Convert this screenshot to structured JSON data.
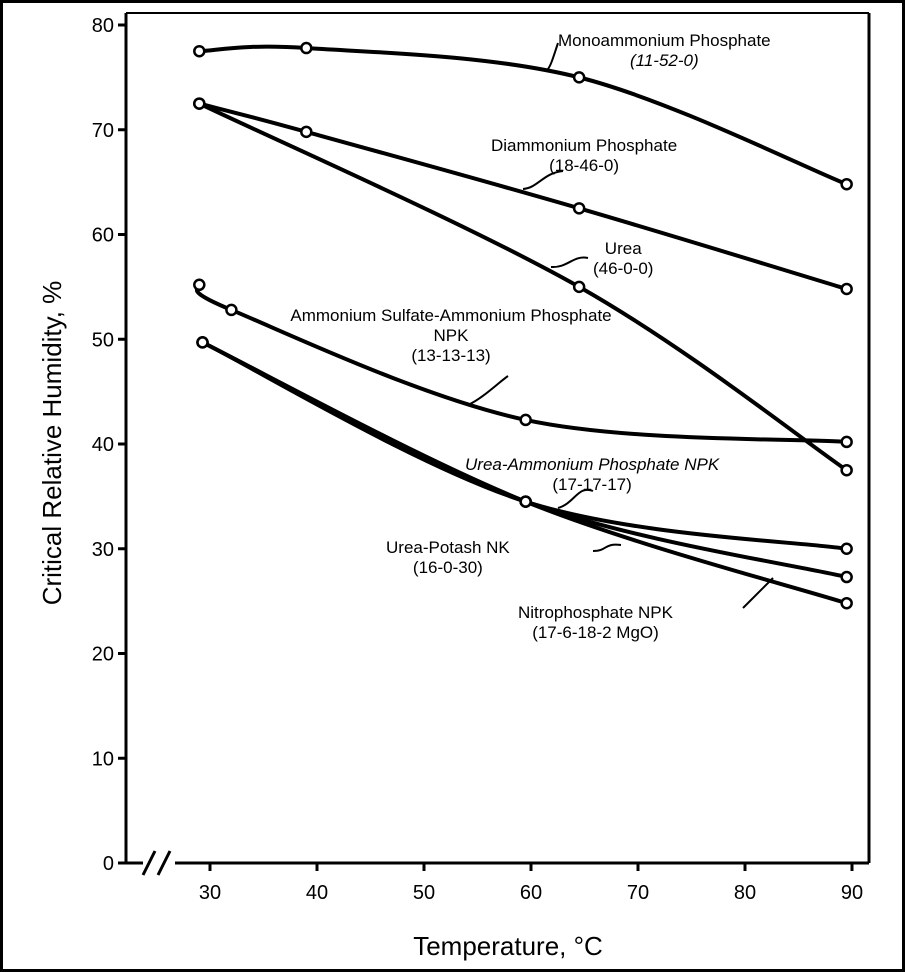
{
  "chart_data": {
    "type": "line",
    "title": "",
    "xlabel": "Temperature, °C",
    "ylabel": "Critical Relative Humidity, %",
    "xlim": [
      22,
      92
    ],
    "ylim": [
      0,
      80
    ],
    "xticks": [
      "30",
      "40",
      "50",
      "60",
      "70",
      "80",
      "90"
    ],
    "yticks": [
      "0",
      "10",
      "20",
      "30",
      "40",
      "50",
      "60",
      "70",
      "80"
    ],
    "grid": false,
    "series": [
      {
        "name": "Monoammonium Phosphate",
        "grade": "(11-52-0)",
        "x": [
          29,
          39,
          64.5,
          89.5
        ],
        "y": [
          77.5,
          77.8,
          75.0,
          64.8
        ]
      },
      {
        "name": "Diammonium Phosphate",
        "grade": "(18-46-0)",
        "x": [
          29,
          39,
          64.5,
          89.5
        ],
        "y": [
          72.5,
          69.8,
          62.5,
          54.8
        ]
      },
      {
        "name": "Urea",
        "grade": "(46-0-0)",
        "x": [
          29,
          64.5,
          89.5
        ],
        "y": [
          72.5,
          55.0,
          37.5
        ]
      },
      {
        "name": "Ammonium Sulfate-Ammonium Phosphate NPK",
        "grade": "(13-13-13)",
        "x": [
          29,
          32,
          59.5,
          89.5
        ],
        "y": [
          55.2,
          52.8,
          42.3,
          40.2
        ]
      },
      {
        "name": "Urea-Ammonium Phosphate NPK",
        "grade": "(17-17-17)",
        "x": [
          29.3,
          59.5,
          89.5
        ],
        "y": [
          49.7,
          34.5,
          30.0
        ]
      },
      {
        "name": "Urea-Potash NK",
        "grade": "(16-0-30)",
        "x": [
          29.3,
          59.5,
          89.5
        ],
        "y": [
          49.7,
          34.5,
          24.8
        ]
      },
      {
        "name": "Nitrophosphate NPK",
        "grade": "(17-6-18-2 MgO)",
        "x": [
          29.3,
          59.5,
          89.5
        ],
        "y": [
          49.7,
          34.5,
          27.3
        ]
      }
    ]
  }
}
